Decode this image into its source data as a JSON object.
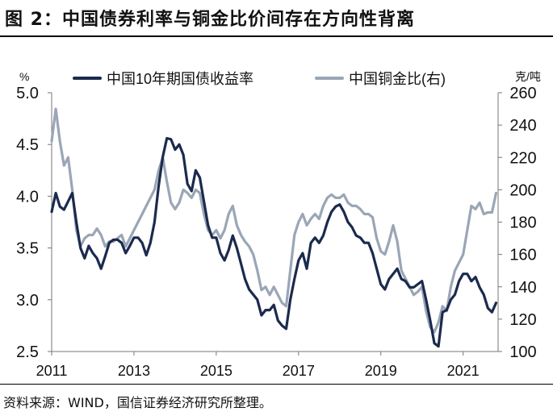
{
  "title": "图 2：中国债券利率与铜金比价间存在方向性背离",
  "source": "资料来源：WIND，国信证券经济研究所整理。",
  "chart_data": {
    "type": "line",
    "left_unit": "%",
    "right_unit": "克/吨",
    "y_left": {
      "min": 2.5,
      "max": 5.0,
      "ticks": [
        "5.0",
        "4.5",
        "4.0",
        "3.5",
        "3.0",
        "2.5"
      ],
      "tick_values": [
        5.0,
        4.5,
        4.0,
        3.5,
        3.0,
        2.5
      ]
    },
    "y_right": {
      "min": 100,
      "max": 260,
      "ticks": [
        "260",
        "240",
        "220",
        "200",
        "180",
        "160",
        "140",
        "120",
        "100"
      ],
      "tick_values": [
        260,
        240,
        220,
        200,
        180,
        160,
        140,
        120,
        100
      ]
    },
    "x_range": [
      2011.0,
      2021.85
    ],
    "x_ticks": [
      "2011",
      "2013",
      "2015",
      "2017",
      "2019",
      "2021"
    ],
    "x_tick_values": [
      2011,
      2013,
      2015,
      2017,
      2019,
      2021
    ],
    "legend_position": "top",
    "series": [
      {
        "name": "中国10年期国债收益率",
        "axis": "left",
        "color": "#1b2a4e",
        "x": [
          2011.0,
          2011.1,
          2011.2,
          2011.3,
          2011.4,
          2011.5,
          2011.6,
          2011.7,
          2011.8,
          2011.9,
          2012.0,
          2012.1,
          2012.2,
          2012.3,
          2012.4,
          2012.5,
          2012.6,
          2012.7,
          2012.8,
          2012.9,
          2013.0,
          2013.1,
          2013.2,
          2013.3,
          2013.4,
          2013.5,
          2013.6,
          2013.7,
          2013.8,
          2013.9,
          2014.0,
          2014.1,
          2014.2,
          2014.3,
          2014.4,
          2014.5,
          2014.6,
          2014.7,
          2014.8,
          2014.9,
          2015.0,
          2015.1,
          2015.2,
          2015.3,
          2015.4,
          2015.5,
          2015.6,
          2015.7,
          2015.8,
          2015.9,
          2016.0,
          2016.1,
          2016.2,
          2016.3,
          2016.4,
          2016.5,
          2016.6,
          2016.7,
          2016.8,
          2016.9,
          2017.0,
          2017.1,
          2017.2,
          2017.3,
          2017.4,
          2017.5,
          2017.6,
          2017.7,
          2017.8,
          2017.9,
          2018.0,
          2018.1,
          2018.2,
          2018.3,
          2018.4,
          2018.5,
          2018.6,
          2018.7,
          2018.8,
          2018.9,
          2019.0,
          2019.1,
          2019.2,
          2019.3,
          2019.4,
          2019.5,
          2019.6,
          2019.7,
          2019.8,
          2019.9,
          2020.0,
          2020.1,
          2020.2,
          2020.3,
          2020.4,
          2020.5,
          2020.6,
          2020.7,
          2020.8,
          2020.9,
          2021.0,
          2021.1,
          2021.2,
          2021.3,
          2021.4,
          2021.5,
          2021.6,
          2021.7,
          2021.8
        ],
        "values": [
          3.85,
          4.03,
          3.9,
          3.87,
          3.95,
          4.03,
          3.75,
          3.5,
          3.4,
          3.52,
          3.45,
          3.4,
          3.3,
          3.42,
          3.55,
          3.58,
          3.58,
          3.55,
          3.45,
          3.52,
          3.6,
          3.6,
          3.55,
          3.43,
          3.55,
          3.75,
          4.1,
          4.38,
          4.56,
          4.55,
          4.45,
          4.5,
          4.4,
          4.12,
          4.05,
          4.25,
          4.18,
          3.95,
          3.72,
          3.6,
          3.6,
          3.45,
          3.38,
          3.48,
          3.62,
          3.5,
          3.35,
          3.2,
          3.1,
          3.05,
          3.0,
          2.85,
          2.9,
          2.9,
          2.95,
          2.8,
          2.75,
          2.72,
          3.0,
          3.2,
          3.38,
          3.45,
          3.3,
          3.55,
          3.6,
          3.55,
          3.62,
          3.75,
          3.85,
          3.9,
          3.92,
          3.85,
          3.75,
          3.7,
          3.62,
          3.6,
          3.55,
          3.55,
          3.45,
          3.3,
          3.15,
          3.1,
          3.2,
          3.25,
          3.3,
          3.2,
          3.18,
          3.12,
          3.12,
          3.15,
          3.18,
          3.0,
          2.8,
          2.58,
          2.55,
          2.88,
          2.9,
          3.0,
          3.05,
          3.18,
          3.25,
          3.25,
          3.18,
          3.22,
          3.12,
          3.05,
          2.92,
          2.88,
          2.97
        ]
      },
      {
        "name": "中国铜金比(右)",
        "axis": "right",
        "color": "#9aa6b6",
        "x": [
          2011.0,
          2011.1,
          2011.2,
          2011.3,
          2011.4,
          2011.5,
          2011.6,
          2011.7,
          2011.8,
          2011.9,
          2012.0,
          2012.1,
          2012.2,
          2012.3,
          2012.4,
          2012.5,
          2012.6,
          2012.7,
          2012.8,
          2012.9,
          2013.0,
          2013.1,
          2013.2,
          2013.3,
          2013.4,
          2013.5,
          2013.6,
          2013.7,
          2013.8,
          2013.9,
          2014.0,
          2014.1,
          2014.2,
          2014.3,
          2014.4,
          2014.5,
          2014.6,
          2014.7,
          2014.8,
          2014.9,
          2015.0,
          2015.1,
          2015.2,
          2015.3,
          2015.4,
          2015.5,
          2015.6,
          2015.7,
          2015.8,
          2015.9,
          2016.0,
          2016.1,
          2016.2,
          2016.3,
          2016.4,
          2016.5,
          2016.6,
          2016.7,
          2016.8,
          2016.9,
          2017.0,
          2017.1,
          2017.2,
          2017.3,
          2017.4,
          2017.5,
          2017.6,
          2017.7,
          2017.8,
          2017.9,
          2018.0,
          2018.1,
          2018.2,
          2018.3,
          2018.4,
          2018.5,
          2018.6,
          2018.7,
          2018.8,
          2018.9,
          2019.0,
          2019.1,
          2019.2,
          2019.3,
          2019.4,
          2019.5,
          2019.6,
          2019.7,
          2019.8,
          2019.9,
          2020.0,
          2020.1,
          2020.2,
          2020.3,
          2020.4,
          2020.5,
          2020.6,
          2020.7,
          2020.8,
          2020.9,
          2021.0,
          2021.1,
          2021.2,
          2021.3,
          2021.4,
          2021.5,
          2021.6,
          2021.7,
          2021.8
        ],
        "values": [
          230,
          250,
          230,
          215,
          220,
          200,
          175,
          165,
          170,
          172,
          172,
          176,
          172,
          165,
          168,
          168,
          170,
          172,
          165,
          170,
          175,
          180,
          185,
          190,
          195,
          200,
          212,
          220,
          205,
          192,
          188,
          192,
          200,
          198,
          195,
          200,
          198,
          185,
          175,
          172,
          175,
          170,
          175,
          185,
          190,
          178,
          172,
          168,
          165,
          160,
          150,
          138,
          140,
          135,
          140,
          135,
          130,
          128,
          150,
          172,
          180,
          185,
          178,
          182,
          185,
          182,
          190,
          195,
          197,
          195,
          195,
          197,
          192,
          190,
          190,
          188,
          185,
          185,
          183,
          170,
          162,
          160,
          168,
          178,
          168,
          150,
          145,
          140,
          135,
          137,
          140,
          125,
          115,
          112,
          118,
          128,
          125,
          140,
          150,
          155,
          160,
          175,
          190,
          188,
          192,
          185,
          186,
          186,
          198
        ]
      }
    ]
  }
}
